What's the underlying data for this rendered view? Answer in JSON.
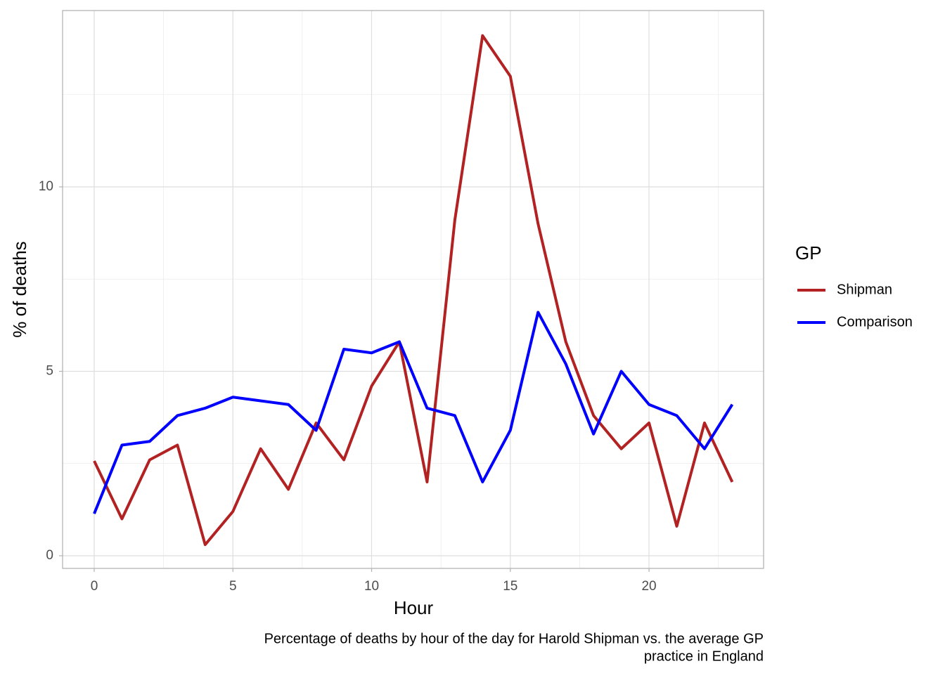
{
  "chart_data": {
    "type": "line",
    "x_label": "Hour",
    "y_label": "% of deaths",
    "caption": [
      "Percentage of deaths by hour of the day for Harold Shipman vs. the average GP",
      "practice in England"
    ],
    "legend_title": "GP",
    "legend_position": "right",
    "grid": true,
    "x": [
      0,
      1,
      2,
      3,
      4,
      5,
      6,
      7,
      8,
      9,
      10,
      11,
      12,
      13,
      14,
      15,
      16,
      17,
      18,
      19,
      20,
      21,
      22,
      23
    ],
    "series": [
      {
        "name": "Shipman",
        "color": "#b22222",
        "values": [
          2.57,
          1.0,
          2.6,
          3.0,
          0.3,
          1.2,
          2.9,
          1.8,
          3.6,
          2.6,
          4.6,
          5.8,
          2.0,
          9.1,
          14.1,
          13.0,
          9.0,
          5.8,
          3.8,
          2.9,
          3.6,
          0.8,
          3.6,
          2.0
        ]
      },
      {
        "name": "Comparison",
        "color": "#0000ff",
        "values": [
          1.14,
          3.0,
          3.1,
          3.8,
          4.0,
          4.3,
          4.2,
          4.1,
          3.4,
          5.6,
          5.5,
          5.8,
          4.0,
          3.8,
          2.0,
          3.4,
          6.6,
          5.2,
          3.3,
          5.0,
          4.1,
          3.8,
          2.9,
          4.1
        ]
      }
    ],
    "xlim": [
      -1.14,
      24.13
    ],
    "xticks": [
      0,
      5,
      10,
      15,
      20
    ],
    "ylim": [
      -0.343,
      14.78
    ],
    "yticks": [
      0,
      5,
      10
    ]
  }
}
